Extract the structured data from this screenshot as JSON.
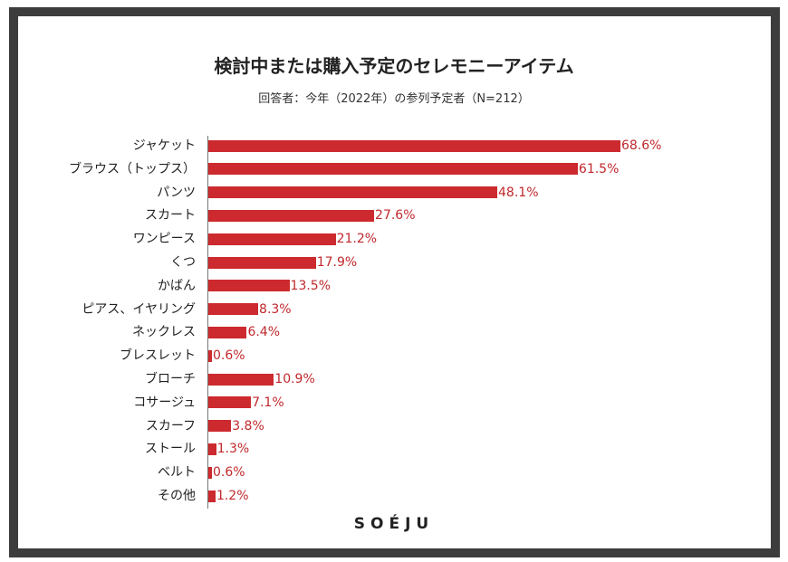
{
  "chart_data": {
    "type": "bar",
    "orientation": "horizontal",
    "title": "検討中または購入予定のセレモニーアイテム",
    "subtitle": "回答者：今年（2022年）の参列予定者（N=212）",
    "categories": [
      "ジャケット",
      "ブラウス（トップス）",
      "パンツ",
      "スカート",
      "ワンピース",
      "くつ",
      "かばん",
      "ピアス、イヤリング",
      "ネックレス",
      "ブレスレット",
      "ブローチ",
      "コサージュ",
      "スカーフ",
      "ストール",
      "ベルト",
      "その他"
    ],
    "values": [
      68.6,
      61.5,
      48.1,
      27.6,
      21.2,
      17.9,
      13.5,
      8.3,
      6.4,
      0.6,
      10.9,
      7.1,
      3.8,
      1.3,
      0.6,
      1.2
    ],
    "value_suffix": "%",
    "xlim": [
      0,
      70
    ],
    "grid": false,
    "bar_color": "#cc2a2e",
    "label_color": "#c0282c"
  },
  "logo": "SOÉJU"
}
